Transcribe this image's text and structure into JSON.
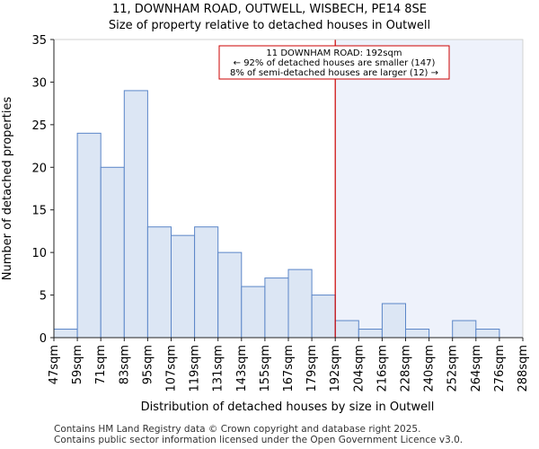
{
  "title_line1": "11, DOWNHAM ROAD, OUTWELL, WISBECH, PE14 8SE",
  "title_line2": "Size of property relative to detached houses in Outwell",
  "footer_line1": "Contains HM Land Registry data © Crown copyright and database right 2025.",
  "footer_line2": "Contains public sector information licensed under the Open Government Licence v3.0.",
  "annotation": {
    "line1": "11 DOWNHAM ROAD: 192sqm",
    "line2": "← 92% of detached houses are smaller (147)",
    "line3": "8% of semi-detached houses are larger (12) →"
  },
  "colors": {
    "bar_fill": "#dce6f4",
    "bar_edge": "#5b86c8",
    "marker": "#cc0000",
    "highlight": "#eef2fb",
    "axis": "#222222"
  },
  "chart_data": {
    "type": "bar",
    "title": "11, DOWNHAM ROAD, OUTWELL, WISBECH, PE14 8SE — Size of property relative to detached houses in Outwell",
    "xlabel": "Distribution of detached houses by size in Outwell",
    "ylabel": "Number of detached properties",
    "bin_edges": [
      47,
      59,
      71,
      83,
      95,
      107,
      119,
      131,
      143,
      155,
      167,
      179,
      192,
      204,
      216,
      228,
      240,
      252,
      264,
      276,
      288
    ],
    "x_tick_labels": [
      "47sqm",
      "59sqm",
      "71sqm",
      "83sqm",
      "95sqm",
      "107sqm",
      "119sqm",
      "131sqm",
      "143sqm",
      "155sqm",
      "167sqm",
      "179sqm",
      "192sqm",
      "204sqm",
      "216sqm",
      "228sqm",
      "240sqm",
      "252sqm",
      "264sqm",
      "276sqm",
      "288sqm"
    ],
    "values": [
      1,
      24,
      20,
      29,
      13,
      12,
      13,
      10,
      6,
      7,
      8,
      5,
      2,
      1,
      4,
      1,
      0,
      2,
      1,
      0
    ],
    "ylim": [
      0,
      35
    ],
    "y_ticks": [
      0,
      5,
      10,
      15,
      20,
      25,
      30,
      35
    ],
    "marker_value": 192,
    "marker_label": "11 DOWNHAM ROAD: 192sqm",
    "grid": false
  }
}
